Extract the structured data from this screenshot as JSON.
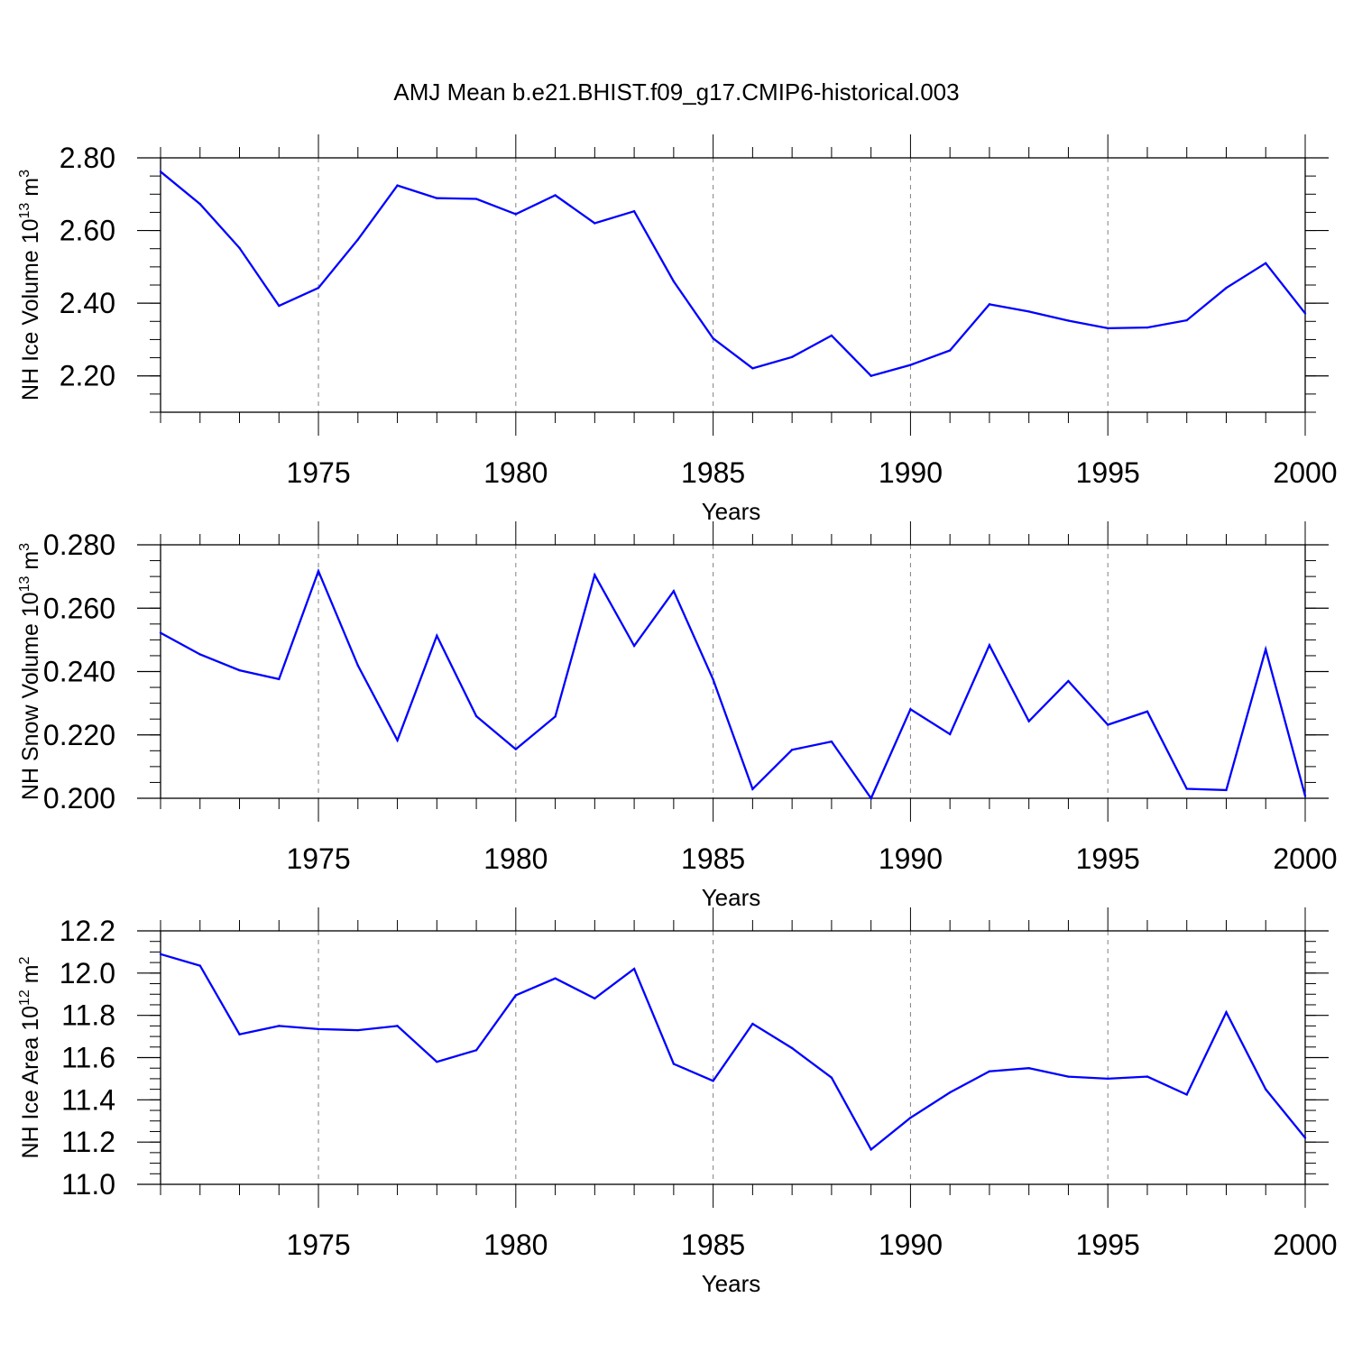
{
  "title": "AMJ Mean b.e21.BHIST.f09_g17.CMIP6-historical.003",
  "colors": {
    "line": "#0000ff",
    "axis": "#000000",
    "grid": "#808080"
  },
  "chart_data": [
    {
      "type": "line",
      "ylabel": "NH Ice Volume 10",
      "ylabel_exp": "13",
      "ylabel_unit": " m",
      "ylabel_unit_exp": "3",
      "xlabel": "Years",
      "xlim": [
        1971,
        2000
      ],
      "ylim": [
        2.1,
        2.8
      ],
      "yticks": [
        2.2,
        2.4,
        2.6,
        2.8
      ],
      "ytick_labels": [
        "2.20",
        "2.40",
        "2.60",
        "2.80"
      ],
      "xticks": [
        1975,
        1980,
        1985,
        1990,
        1995,
        2000
      ],
      "xtick_labels": [
        "1975",
        "1980",
        "1985",
        "1990",
        "1995",
        "2000"
      ],
      "grid": "vertical dashed",
      "series": [
        {
          "name": "NH Ice Volume",
          "x": [
            1971,
            1972,
            1973,
            1974,
            1975,
            1976,
            1977,
            1978,
            1979,
            1980,
            1981,
            1982,
            1983,
            1984,
            1985,
            1986,
            1987,
            1988,
            1989,
            1990,
            1991,
            1992,
            1993,
            1994,
            1995,
            1996,
            1997,
            1998,
            1999,
            2000
          ],
          "values": [
            2.762,
            2.673,
            2.552,
            2.393,
            2.442,
            2.575,
            2.724,
            2.689,
            2.687,
            2.645,
            2.697,
            2.62,
            2.653,
            2.46,
            2.303,
            2.221,
            2.252,
            2.311,
            2.2,
            2.23,
            2.27,
            2.397,
            2.377,
            2.352,
            2.331,
            2.333,
            2.353,
            2.442,
            2.51,
            2.372
          ]
        }
      ]
    },
    {
      "type": "line",
      "ylabel": "NH Snow Volume 10",
      "ylabel_exp": "13",
      "ylabel_unit": " m",
      "ylabel_unit_exp": "3",
      "xlabel": "Years",
      "xlim": [
        1971,
        2000
      ],
      "ylim": [
        0.2,
        0.28
      ],
      "yticks": [
        0.2,
        0.22,
        0.24,
        0.26,
        0.28
      ],
      "ytick_labels": [
        "0.200",
        "0.220",
        "0.240",
        "0.260",
        "0.280"
      ],
      "xticks": [
        1975,
        1980,
        1985,
        1990,
        1995,
        2000
      ],
      "xtick_labels": [
        "1975",
        "1980",
        "1985",
        "1990",
        "1995",
        "2000"
      ],
      "grid": "vertical dashed",
      "series": [
        {
          "name": "NH Snow Volume",
          "x": [
            1971,
            1972,
            1973,
            1974,
            1975,
            1976,
            1977,
            1978,
            1979,
            1980,
            1981,
            1982,
            1983,
            1984,
            1985,
            1986,
            1987,
            1988,
            1989,
            1990,
            1991,
            1992,
            1993,
            1994,
            1995,
            1996,
            1997,
            1998,
            1999,
            2000
          ],
          "values": [
            0.2522,
            0.2454,
            0.2404,
            0.2376,
            0.2717,
            0.2419,
            0.2183,
            0.2513,
            0.2259,
            0.2155,
            0.2258,
            0.2705,
            0.2481,
            0.2654,
            0.2375,
            0.2029,
            0.2153,
            0.2179,
            0.2,
            0.2281,
            0.2202,
            0.2483,
            0.2243,
            0.237,
            0.2232,
            0.2274,
            0.203,
            0.2026,
            0.247,
            0.2007
          ]
        }
      ]
    },
    {
      "type": "line",
      "ylabel": "NH Ice Area 10",
      "ylabel_exp": "12",
      "ylabel_unit": " m",
      "ylabel_unit_exp": "2",
      "xlabel": "Years",
      "xlim": [
        1971,
        2000
      ],
      "ylim": [
        11.0,
        12.2
      ],
      "yticks": [
        11.0,
        11.2,
        11.4,
        11.6,
        11.8,
        12.0,
        12.2
      ],
      "ytick_labels": [
        "11.0",
        "11.2",
        "11.4",
        "11.6",
        "11.8",
        "12.0",
        "12.2"
      ],
      "xticks": [
        1975,
        1980,
        1985,
        1990,
        1995,
        2000
      ],
      "xtick_labels": [
        "1975",
        "1980",
        "1985",
        "1990",
        "1995",
        "2000"
      ],
      "grid": "vertical dashed",
      "series": [
        {
          "name": "NH Ice Area",
          "x": [
            1971,
            1972,
            1973,
            1974,
            1975,
            1976,
            1977,
            1978,
            1979,
            1980,
            1981,
            1982,
            1983,
            1984,
            1985,
            1986,
            1987,
            1988,
            1989,
            1990,
            1991,
            1992,
            1993,
            1994,
            1995,
            1996,
            1997,
            1998,
            1999,
            2000
          ],
          "values": [
            12.09,
            12.035,
            11.71,
            11.75,
            11.735,
            11.73,
            11.75,
            11.58,
            11.635,
            11.895,
            11.975,
            11.88,
            12.02,
            11.57,
            11.49,
            11.76,
            11.645,
            11.505,
            11.165,
            11.315,
            11.435,
            11.535,
            11.55,
            11.51,
            11.5,
            11.51,
            11.425,
            11.815,
            11.45,
            11.22
          ]
        }
      ]
    }
  ]
}
